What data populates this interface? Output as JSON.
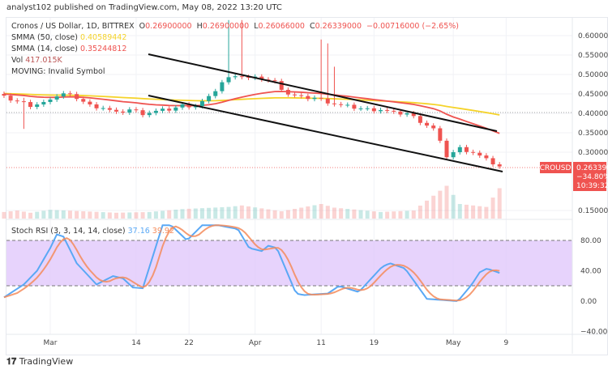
{
  "header": "analyst102 published on TradingView.com, May 08, 2022 13:20 UTC",
  "legend": {
    "symbol": "Cronos / US Dollar, 1D, BITTREX",
    "o_label": "O",
    "o": "0.26900000",
    "h_label": "H",
    "h": "0.26900000",
    "l_label": "L",
    "l": "0.26066000",
    "c_label": "C",
    "c": "0.26339000",
    "change": "−0.00716000 (−2.65%)",
    "smma50_label": "SMMA (50, close)",
    "smma50": "0.40589442",
    "smma14_label": "SMMA (14, close)",
    "smma14": "0.35244812",
    "vol_label": "Vol",
    "vol": "417.015K",
    "moving": "MOVING: Invalid Symbol",
    "stoch_label": "Stoch RSI (3, 3, 14, 14, close)",
    "stoch_k": "37.16",
    "stoch_d": "39.92"
  },
  "price_tag": {
    "symbol": "CROUSD",
    "price": "0.26339000",
    "pct": "−34.80%",
    "countdown": "10:39:32"
  },
  "footer": "TradingView",
  "colors": {
    "up": "#26a69a",
    "down": "#ef5350",
    "smma50": "#f5d32a",
    "smma14": "#ef5350",
    "stoch_k": "#5aa8f5",
    "stoch_d": "#f58b5a",
    "band": "#e1c8fb"
  },
  "chart_data": [
    {
      "type": "candlestick",
      "price_ticks": [
        "0.60000000",
        "0.55000000",
        "0.50000000",
        "0.45000000",
        "0.40000000",
        "0.35000000",
        "0.30000000",
        "0.15000000"
      ],
      "price_tick_values": [
        0.6,
        0.55,
        0.5,
        0.45,
        0.4,
        0.35,
        0.3,
        0.15
      ],
      "x_ticks": [
        {
          "label": "Mar",
          "day": 0
        },
        {
          "label": "14",
          "day": 13
        },
        {
          "label": "22",
          "day": 21
        },
        {
          "label": "Apr",
          "day": 31
        },
        {
          "label": "11",
          "day": 41
        },
        {
          "label": "19",
          "day": 49
        },
        {
          "label": "May",
          "day": 61
        },
        {
          "label": "9",
          "day": 69
        }
      ],
      "close_keypoints": [
        [
          -7,
          0.45
        ],
        [
          -5,
          0.44
        ],
        [
          -3,
          0.43
        ],
        [
          0,
          0.44
        ],
        [
          2,
          0.45
        ],
        [
          4,
          0.44
        ],
        [
          6,
          0.42
        ],
        [
          8,
          0.415
        ],
        [
          10,
          0.4
        ],
        [
          12,
          0.41
        ],
        [
          14,
          0.4
        ],
        [
          16,
          0.405
        ],
        [
          18,
          0.41
        ],
        [
          20,
          0.42
        ],
        [
          22,
          0.42
        ],
        [
          24,
          0.44
        ],
        [
          26,
          0.48
        ],
        [
          28,
          0.5
        ],
        [
          30,
          0.49
        ],
        [
          32,
          0.49
        ],
        [
          34,
          0.48
        ],
        [
          36,
          0.45
        ],
        [
          38,
          0.44
        ],
        [
          40,
          0.44
        ],
        [
          42,
          0.43
        ],
        [
          44,
          0.42
        ],
        [
          46,
          0.415
        ],
        [
          48,
          0.41
        ],
        [
          50,
          0.41
        ],
        [
          52,
          0.4
        ],
        [
          54,
          0.4
        ],
        [
          56,
          0.38
        ],
        [
          58,
          0.36
        ],
        [
          60,
          0.29
        ],
        [
          62,
          0.31
        ],
        [
          64,
          0.3
        ],
        [
          66,
          0.28
        ],
        [
          68,
          0.2634
        ]
      ],
      "high_overrides": [
        [
          -4,
          0.44
        ],
        [
          27,
          0.64
        ],
        [
          29,
          0.64
        ],
        [
          41,
          0.59
        ],
        [
          42,
          0.58
        ],
        [
          43,
          0.52
        ]
      ],
      "low_overrides": [
        [
          -4,
          0.36
        ]
      ],
      "volume_k": [
        [
          -7,
          90
        ],
        [
          -5,
          110
        ],
        [
          -3,
          80
        ],
        [
          0,
          120
        ],
        [
          5,
          100
        ],
        [
          10,
          80
        ],
        [
          15,
          90
        ],
        [
          20,
          130
        ],
        [
          27,
          160
        ],
        [
          29,
          180
        ],
        [
          35,
          100
        ],
        [
          41,
          200
        ],
        [
          43,
          150
        ],
        [
          50,
          90
        ],
        [
          55,
          110
        ],
        [
          60,
          450
        ],
        [
          62,
          200
        ],
        [
          64,
          180
        ],
        [
          66,
          160
        ],
        [
          68,
          417
        ]
      ],
      "smma50_last": 0.40589442,
      "smma14_last": 0.35244812,
      "last_close": 0.26339
    },
    {
      "type": "line",
      "title": "Stoch RSI (3, 3, 14, 14, close)",
      "y_ticks": [
        "80.00",
        "40.00",
        "0.00",
        "−40.00"
      ],
      "y_tick_values": [
        80,
        40,
        0,
        -40
      ],
      "band": [
        20,
        80
      ],
      "k_keypoints": [
        [
          -7,
          5
        ],
        [
          -4,
          22
        ],
        [
          -2,
          40
        ],
        [
          0,
          70
        ],
        [
          1,
          88
        ],
        [
          2,
          85
        ],
        [
          4,
          50
        ],
        [
          7,
          22
        ],
        [
          9.5,
          33
        ],
        [
          11,
          30
        ],
        [
          12.5,
          18
        ],
        [
          14,
          17
        ],
        [
          17,
          100
        ],
        [
          18.3,
          100
        ],
        [
          20.7,
          80
        ],
        [
          23,
          100
        ],
        [
          25.4,
          100
        ],
        [
          28.4,
          95
        ],
        [
          30.1,
          70
        ],
        [
          32,
          66
        ],
        [
          33,
          73
        ],
        [
          34.3,
          70
        ],
        [
          37.2,
          10
        ],
        [
          38.4,
          8
        ],
        [
          42,
          10
        ],
        [
          43.7,
          20
        ],
        [
          46.7,
          12
        ],
        [
          50.2,
          45
        ],
        [
          51.4,
          50
        ],
        [
          53.7,
          43
        ],
        [
          57,
          3
        ],
        [
          61.7,
          0
        ],
        [
          63.8,
          22
        ],
        [
          65,
          38
        ],
        [
          66.1,
          43
        ],
        [
          68,
          37.16
        ]
      ]
    }
  ]
}
